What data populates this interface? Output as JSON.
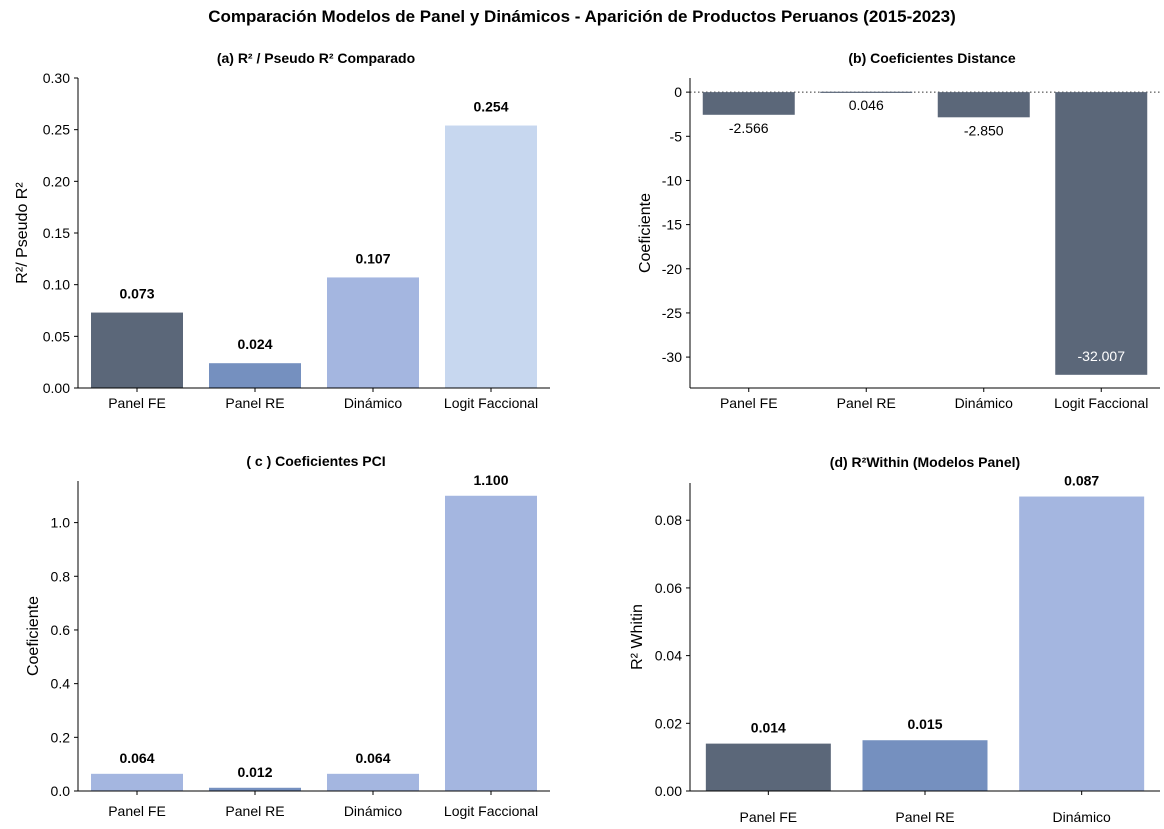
{
  "title": "Comparación Modelos de Panel y Dinámicos - Aparición de Productos Peruanos (2015-2023)",
  "colors": {
    "dark": "#5b6779",
    "mid": "#7590bf",
    "light": "#a4b6e0",
    "pale": "#c7d7ef"
  },
  "chart_data": [
    {
      "type": "bar",
      "title": "(a) R² / Pseudo R² Comparado",
      "ylabel": "R²/ Pseudo R²",
      "categories": [
        "Panel FE",
        "Panel RE",
        "Dinámico",
        "Logit Faccional"
      ],
      "values": [
        0.073,
        0.024,
        0.107,
        0.254
      ],
      "labels": [
        "0.073",
        "0.024",
        "0.107",
        "0.254"
      ],
      "bar_colors": [
        "#5b6779",
        "#7590bf",
        "#a4b6e0",
        "#c7d7ef"
      ],
      "ylim": [
        0,
        0.3
      ],
      "yticks": [
        0.0,
        0.05,
        0.1,
        0.15,
        0.2,
        0.25,
        0.3
      ],
      "ytick_labels": [
        "0.00",
        "0.05",
        "0.10",
        "0.15",
        "0.20",
        "0.25",
        "0.30"
      ],
      "grid": false
    },
    {
      "type": "bar",
      "title": "(b) Coeficientes Distance",
      "ylabel": "Coeficiente",
      "categories": [
        "Panel FE",
        "Panel RE",
        "Dinámico",
        "Logit Faccional"
      ],
      "values": [
        -2.566,
        0.046,
        -2.85,
        -32.007
      ],
      "labels": [
        "-2.566",
        "0.046",
        "-2.850",
        "-32.007"
      ],
      "bar_colors": [
        "#5b6779",
        "#5b6779",
        "#5b6779",
        "#5b6779"
      ],
      "ylim": [
        -33.5,
        1.6
      ],
      "yticks": [
        0,
        -5,
        -10,
        -15,
        -20,
        -25,
        -30
      ],
      "ytick_labels": [
        "0",
        "-5",
        "-10",
        "-15",
        "-20",
        "-25",
        "-30"
      ],
      "zero_line": "dotted",
      "grid": false
    },
    {
      "type": "bar",
      "title": "( c ) Coeficientes PCI",
      "ylabel": "Coeficiente",
      "categories": [
        "Panel FE",
        "Panel RE",
        "Dinámico",
        "Logit Faccional"
      ],
      "values": [
        0.064,
        0.012,
        0.064,
        1.1
      ],
      "labels": [
        "0.064",
        "0.012",
        "0.064",
        "1.100"
      ],
      "bar_colors": [
        "#a4b6e0",
        "#7590bf",
        "#a4b6e0",
        "#a4b6e0"
      ],
      "ylim": [
        0,
        1.155
      ],
      "yticks": [
        0.0,
        0.2,
        0.4,
        0.6,
        0.8,
        1.0
      ],
      "ytick_labels": [
        "0.0",
        "0.2",
        "0.4",
        "0.6",
        "0.8",
        "1.0"
      ],
      "grid": false
    },
    {
      "type": "bar",
      "title": "(d) R²Within (Modelos Panel)",
      "ylabel": "R² Whitin",
      "categories": [
        "Panel FE",
        "Panel RE",
        "Dinámico"
      ],
      "values": [
        0.014,
        0.015,
        0.087
      ],
      "labels": [
        "0.014",
        "0.015",
        "0.087"
      ],
      "bar_colors": [
        "#5b6779",
        "#7590bf",
        "#a4b6e0"
      ],
      "ylim": [
        0,
        0.091
      ],
      "yticks": [
        0.0,
        0.02,
        0.04,
        0.06,
        0.08
      ],
      "ytick_labels": [
        "0.00",
        "0.02",
        "0.04",
        "0.06",
        "0.08"
      ],
      "grid": false
    }
  ]
}
